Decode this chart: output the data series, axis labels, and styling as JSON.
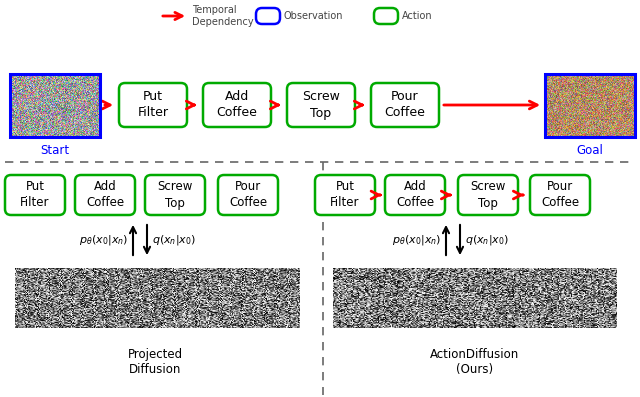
{
  "bg_color": "#ffffff",
  "legend": {
    "arrow_color": "#ff0000",
    "arrow_label": "Temporal\nDependency",
    "obs_color": "#0000ff",
    "obs_label": "Observation",
    "action_color": "#00aa00",
    "action_label": "Action"
  },
  "top_row": {
    "actions": [
      "Put\nFilter",
      "Add\nCoffee",
      "Screw\nTop",
      "Pour\nCoffee"
    ],
    "start_label": "Start",
    "goal_label": "Goal"
  },
  "bottom_left": {
    "actions": [
      "Put\nFilter",
      "Add\nCoffee",
      "Screw\nTop",
      "Pour\nCoffee"
    ],
    "label": "Projected\nDiffusion",
    "arrows": false
  },
  "bottom_right": {
    "actions": [
      "Put\nFilter",
      "Add\nCoffee",
      "Screw\nTop",
      "Pour\nCoffee"
    ],
    "label": "ActionDiffusion\n(Ours)",
    "arrows": true
  },
  "action_box_color": "#00aa00",
  "action_box_edge": "#00aa00",
  "action_text_color": "#000000",
  "obs_box_color": "#0000ff",
  "red_arrow_color": "#ff0000"
}
